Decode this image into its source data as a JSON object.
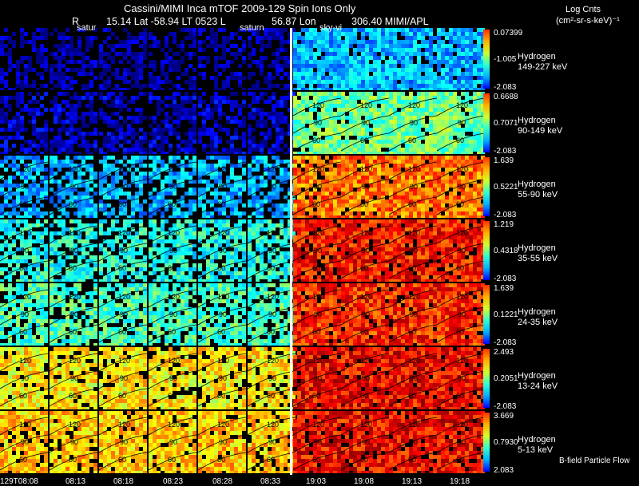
{
  "header": {
    "title": "Cassini/MIMI Inca mTOF  2009-129   Spin    Ions Only",
    "r_label": "R",
    "line2": "15.14 Lat -58.94 LT 0523 L",
    "lon": "56.87 Lon",
    "org": "306.40  MIMI/APL",
    "units_title": "Log Cnts",
    "units": "(cm²-sr-s-keV)⁻¹"
  },
  "panel_labels": {
    "saturn_left": "satur",
    "saturn_mid": "saturn",
    "sky_right": "sky-vi"
  },
  "rows": [
    {
      "species": "Hydrogen",
      "energy": "149-227 keV",
      "cb_max": "0.07399",
      "cb_mid": "-1.005",
      "cb_min": "-2.083",
      "left_level": 0.03,
      "right_level": 0.3,
      "angles": []
    },
    {
      "species": "Hydrogen",
      "energy": "90-149 keV",
      "cb_max": "0.6688",
      "cb_mid": "0.7071",
      "cb_min": "-2.083",
      "left_level": 0.06,
      "right_level": 0.48,
      "angles": [
        "120",
        "90",
        "60"
      ]
    },
    {
      "species": "Hydrogen",
      "energy": "55-90 keV",
      "cb_max": "1.639",
      "cb_mid": "0.5221",
      "cb_min": "-2.083",
      "left_level": 0.3,
      "right_level": 0.76,
      "angles": [
        "120",
        "90",
        "60"
      ]
    },
    {
      "species": "Hydrogen",
      "energy": "35-55 keV",
      "cb_max": "1.219",
      "cb_mid": "0.4318",
      "cb_min": "-2.083",
      "left_level": 0.4,
      "right_level": 0.86,
      "angles": [
        "120",
        "90",
        "60"
      ]
    },
    {
      "species": "Hydrogen",
      "energy": "24-35 keV",
      "cb_max": "1.639",
      "cb_mid": "0.1221",
      "cb_min": "-2.083",
      "left_level": 0.44,
      "right_level": 0.84,
      "angles": [
        "120",
        "90",
        "60"
      ]
    },
    {
      "species": "Hydrogen",
      "energy": "13-24 keV",
      "cb_max": "2.493",
      "cb_mid": "0.2051",
      "cb_min": "-2.083",
      "left_level": 0.64,
      "right_level": 0.88,
      "angles": [
        "120",
        "90",
        "60"
      ]
    },
    {
      "species": "Hydrogen",
      "energy": "5-13 keV",
      "cb_max": "3.669",
      "cb_mid": "0.7930",
      "cb_min": "2.083",
      "left_level": 0.68,
      "right_level": 0.88,
      "angles": [
        "120",
        "90",
        "60"
      ]
    }
  ],
  "times": [
    "129T08:08",
    "08:13",
    "08:18",
    "08:23",
    "08:28",
    "08:33",
    "19:03",
    "19:08",
    "19:13",
    "19:18"
  ],
  "footer": {
    "legend": "B-field Particle Flow"
  },
  "colors": {
    "background": "#000000",
    "separator": "#ffffff"
  }
}
